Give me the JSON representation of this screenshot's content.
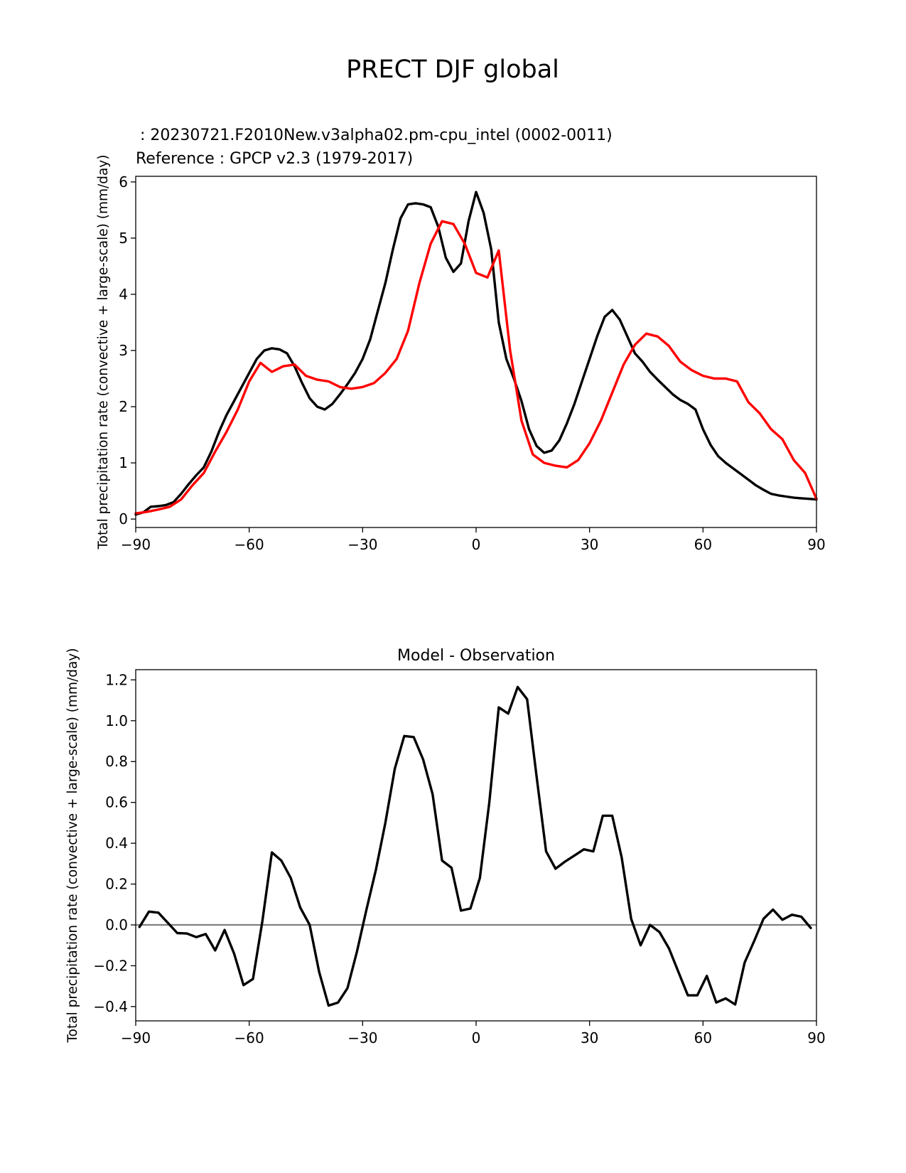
{
  "page_title": "PRECT DJF global",
  "colors": {
    "model": "#000000",
    "reference": "#ff0000",
    "zero_line": "#808080"
  },
  "chart_data": [
    {
      "type": "line",
      "test_label": " : 20230721.F2010New.v3alpha02.pm-cpu_intel (0002-0011)",
      "ref_label": "Reference : GPCP v2.3 (1979-2017)",
      "xlabel": "",
      "ylabel": "Total precipitation rate (convective + large-scale) (mm/day)",
      "xlim": [
        -90,
        90
      ],
      "ylim": [
        -0.15,
        6.1
      ],
      "xticks": [
        -90,
        -60,
        -30,
        0,
        30,
        60,
        90
      ],
      "xtick_labels": [
        "−90",
        "−60",
        "−30",
        "0",
        "30",
        "60",
        "90"
      ],
      "yticks": [
        0,
        1,
        2,
        3,
        4,
        5,
        6
      ],
      "ytick_labels": [
        "0",
        "1",
        "2",
        "3",
        "4",
        "5",
        "6"
      ],
      "series": [
        {
          "name": "test",
          "color": "#000000",
          "x": [
            -90,
            -88,
            -86,
            -84,
            -82,
            -80,
            -78,
            -76,
            -74,
            -72,
            -70,
            -68,
            -66,
            -64,
            -62,
            -60,
            -58,
            -56,
            -54,
            -52,
            -50,
            -48,
            -46,
            -44,
            -42,
            -40,
            -38,
            -36,
            -34,
            -32,
            -30,
            -28,
            -26,
            -24,
            -22,
            -20,
            -18,
            -16,
            -14,
            -12,
            -10,
            -8,
            -6,
            -4,
            -2,
            0,
            2,
            4,
            6,
            8,
            10,
            12,
            14,
            16,
            18,
            20,
            22,
            24,
            26,
            28,
            30,
            32,
            34,
            36,
            38,
            40,
            42,
            44,
            46,
            48,
            50,
            52,
            54,
            56,
            58,
            60,
            62,
            64,
            66,
            68,
            70,
            72,
            74,
            76,
            78,
            80,
            82,
            84,
            86,
            88,
            90
          ],
          "values": [
            0.08,
            0.12,
            0.22,
            0.23,
            0.25,
            0.3,
            0.45,
            0.62,
            0.78,
            0.92,
            1.2,
            1.55,
            1.85,
            2.1,
            2.35,
            2.6,
            2.85,
            3.0,
            3.04,
            3.02,
            2.95,
            2.72,
            2.42,
            2.15,
            2.0,
            1.95,
            2.05,
            2.22,
            2.4,
            2.6,
            2.85,
            3.2,
            3.7,
            4.2,
            4.8,
            5.35,
            5.6,
            5.62,
            5.6,
            5.55,
            5.2,
            4.65,
            4.4,
            4.55,
            5.3,
            5.82,
            5.45,
            4.8,
            3.5,
            2.85,
            2.5,
            2.1,
            1.6,
            1.3,
            1.18,
            1.22,
            1.4,
            1.7,
            2.05,
            2.45,
            2.85,
            3.25,
            3.6,
            3.72,
            3.55,
            3.25,
            2.95,
            2.8,
            2.62,
            2.48,
            2.35,
            2.22,
            2.12,
            2.05,
            1.95,
            1.6,
            1.32,
            1.12,
            1.0,
            0.9,
            0.8,
            0.7,
            0.6,
            0.52,
            0.45,
            0.42,
            0.4,
            0.38,
            0.37,
            0.36,
            0.35
          ]
        },
        {
          "name": "reference",
          "color": "#ff0000",
          "x": [
            -90,
            -87,
            -84,
            -81,
            -78,
            -75,
            -72,
            -69,
            -66,
            -63,
            -60,
            -57,
            -54,
            -51,
            -48,
            -45,
            -42,
            -39,
            -36,
            -33,
            -30,
            -27,
            -24,
            -21,
            -18,
            -15,
            -12,
            -9,
            -6,
            -3,
            0,
            3,
            6,
            9,
            12,
            15,
            18,
            21,
            24,
            27,
            30,
            33,
            36,
            39,
            42,
            45,
            48,
            51,
            54,
            57,
            60,
            63,
            66,
            69,
            72,
            75,
            78,
            81,
            84,
            87,
            90
          ],
          "values": [
            0.1,
            0.13,
            0.17,
            0.22,
            0.35,
            0.6,
            0.82,
            1.2,
            1.55,
            1.95,
            2.45,
            2.78,
            2.62,
            2.72,
            2.75,
            2.55,
            2.48,
            2.45,
            2.35,
            2.32,
            2.35,
            2.42,
            2.6,
            2.85,
            3.35,
            4.2,
            4.9,
            5.3,
            5.25,
            4.9,
            4.38,
            4.3,
            4.78,
            3.0,
            1.75,
            1.15,
            1.0,
            0.95,
            0.92,
            1.05,
            1.35,
            1.75,
            2.25,
            2.75,
            3.1,
            3.3,
            3.25,
            3.08,
            2.8,
            2.65,
            2.55,
            2.5,
            2.5,
            2.45,
            2.08,
            1.88,
            1.6,
            1.42,
            1.05,
            0.82,
            0.36
          ]
        }
      ]
    },
    {
      "type": "line",
      "title": "Model - Observation",
      "xlabel": "",
      "ylabel": "Total precipitation rate (convective + large-scale) (mm/day)",
      "xlim": [
        -90,
        90
      ],
      "ylim": [
        -0.47,
        1.25
      ],
      "xticks": [
        -90,
        -60,
        -30,
        0,
        30,
        60,
        90
      ],
      "xtick_labels": [
        "−90",
        "−60",
        "−30",
        "0",
        "30",
        "60",
        "90"
      ],
      "yticks": [
        -0.4,
        -0.2,
        0.0,
        0.2,
        0.4,
        0.6,
        0.8,
        1.0,
        1.2
      ],
      "ytick_labels": [
        "−0.4",
        "−0.2",
        "0.0",
        "0.2",
        "0.4",
        "0.6",
        "0.8",
        "1.0",
        "1.2"
      ],
      "zero_line": true,
      "series": [
        {
          "name": "difference",
          "color": "#000000",
          "x": [
            -89,
            -86.5,
            -84,
            -81.5,
            -79,
            -76.5,
            -74,
            -71.5,
            -69,
            -66.5,
            -64,
            -61.5,
            -59,
            -56.5,
            -54,
            -51.5,
            -49,
            -46.5,
            -44,
            -41.5,
            -39,
            -36.5,
            -34,
            -31.5,
            -29,
            -26.5,
            -24,
            -21.5,
            -19,
            -16.5,
            -14,
            -11.5,
            -9,
            -6.5,
            -4,
            -1.5,
            1,
            3.5,
            6,
            8.5,
            11,
            13.5,
            16,
            18.5,
            21,
            23.5,
            26,
            28.5,
            31,
            33.5,
            36,
            38.5,
            41,
            43.5,
            46,
            48.5,
            51,
            53.5,
            56,
            58.5,
            61,
            63.5,
            66,
            68.5,
            71,
            73.5,
            76,
            78.5,
            81,
            83.5,
            86,
            88.5
          ],
          "values": [
            -0.01,
            0.065,
            0.06,
            0.01,
            -0.04,
            -0.042,
            -0.06,
            -0.045,
            -0.125,
            -0.025,
            -0.14,
            -0.295,
            -0.265,
            0.02,
            0.355,
            0.315,
            0.23,
            0.085,
            0.0,
            -0.23,
            -0.395,
            -0.38,
            -0.31,
            -0.13,
            0.075,
            0.27,
            0.5,
            0.765,
            0.925,
            0.92,
            0.81,
            0.64,
            0.315,
            0.28,
            0.07,
            0.08,
            0.23,
            0.6,
            1.065,
            1.035,
            1.165,
            1.105,
            0.725,
            0.36,
            0.275,
            0.31,
            0.34,
            0.37,
            0.36,
            0.535,
            0.535,
            0.33,
            0.03,
            -0.1,
            0.0,
            -0.035,
            -0.115,
            -0.23,
            -0.345,
            -0.345,
            -0.25,
            -0.38,
            -0.36,
            -0.39,
            -0.185,
            -0.08,
            0.03,
            0.075,
            0.025,
            0.05,
            0.04,
            -0.015
          ]
        }
      ]
    }
  ]
}
